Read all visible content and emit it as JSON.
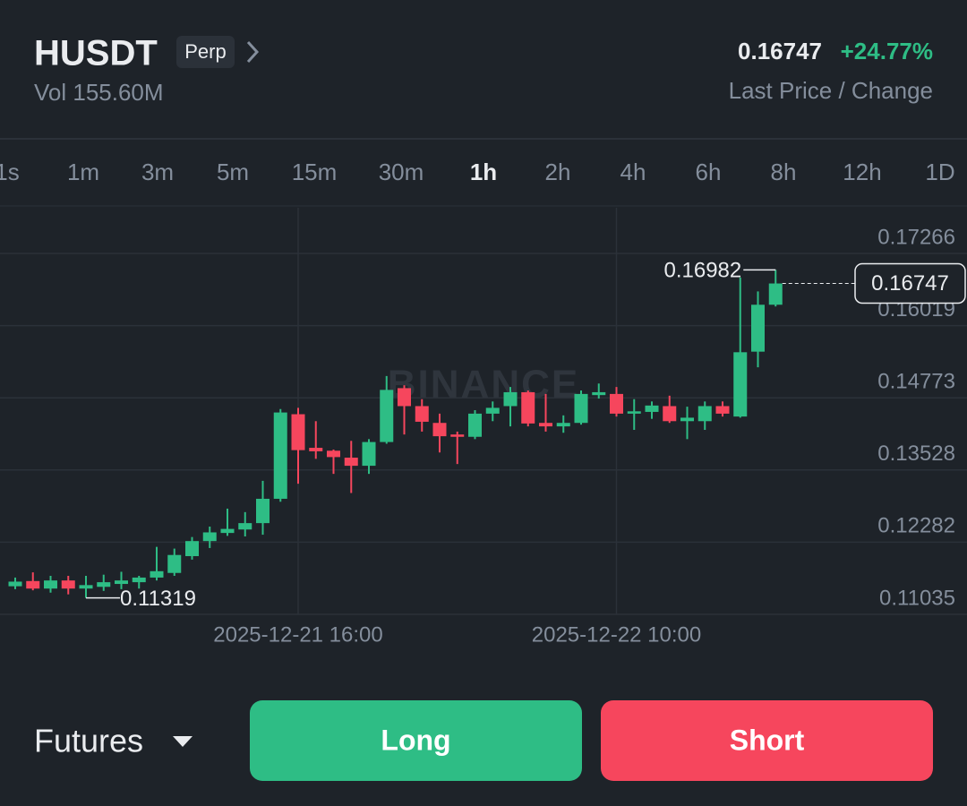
{
  "header": {
    "symbol": "HUSDT",
    "contract": "Perp",
    "volume": "Vol 155.60M",
    "last_price": "0.16747",
    "change": "+24.77%",
    "caption": "Last Price / Change"
  },
  "timeframes": [
    "1s",
    "1m",
    "3m",
    "5m",
    "15m",
    "30m",
    "1h",
    "2h",
    "4h",
    "6h",
    "8h",
    "12h",
    "1D"
  ],
  "selected_timeframe": "1h",
  "chart_data": {
    "type": "candlestick",
    "watermark": "BINANCE",
    "categories": [
      null,
      null,
      null,
      null,
      null,
      null,
      null,
      null,
      null,
      null,
      null,
      null,
      null,
      null,
      null,
      null,
      "2025-12-21 16:00",
      null,
      null,
      null,
      null,
      null,
      null,
      null,
      null,
      null,
      null,
      null,
      null,
      null,
      null,
      null,
      null,
      null,
      "2025-12-22 10:00",
      null,
      null,
      null,
      null,
      null,
      null,
      null,
      null,
      null
    ],
    "open": [
      0.1152,
      0.1161,
      0.1148,
      0.1162,
      0.1148,
      0.1151,
      0.1156,
      0.1159,
      0.1167,
      0.1175,
      0.1204,
      0.123,
      0.1244,
      0.125,
      0.1261,
      0.1303,
      0.1449,
      0.1391,
      0.1386,
      0.1374,
      0.136,
      0.1401,
      0.1494,
      0.1463,
      0.1434,
      0.1414,
      0.141,
      0.145,
      0.1463,
      0.1487,
      0.1434,
      0.1428,
      0.1434,
      0.1482,
      0.1484,
      0.145,
      0.1453,
      0.1463,
      0.1437,
      0.1437,
      0.1463,
      0.1445,
      0.1557,
      0.1638
    ],
    "high": [
      0.1167,
      0.1176,
      0.117,
      0.117,
      0.117,
      0.1172,
      0.1177,
      0.117,
      0.122,
      0.1217,
      0.1237,
      0.1255,
      0.1286,
      0.128,
      0.1334,
      0.1458,
      0.146,
      0.1437,
      0.1388,
      0.1403,
      0.1406,
      0.1515,
      0.1499,
      0.1475,
      0.145,
      0.1419,
      0.1456,
      0.1471,
      0.1496,
      0.149,
      0.1484,
      0.1447,
      0.149,
      0.1502,
      0.1496,
      0.1475,
      0.1471,
      0.1481,
      0.1462,
      0.1471,
      0.1471,
      0.1685,
      0.1661,
      0.16982
    ],
    "low": [
      0.1147,
      0.1145,
      0.1141,
      0.1138,
      0.11319,
      0.1144,
      0.1147,
      0.1148,
      0.1162,
      0.117,
      0.1198,
      0.1218,
      0.1239,
      0.1238,
      0.1241,
      0.1298,
      0.1329,
      0.1372,
      0.1346,
      0.1313,
      0.1346,
      0.1398,
      0.1414,
      0.1419,
      0.1383,
      0.1363,
      0.1406,
      0.1437,
      0.1428,
      0.1428,
      0.1419,
      0.1417,
      0.1431,
      0.1476,
      0.1445,
      0.1422,
      0.1441,
      0.1434,
      0.1406,
      0.1422,
      0.1445,
      0.1443,
      0.153,
      0.1635
    ],
    "close": [
      0.116,
      0.1148,
      0.1162,
      0.1148,
      0.1154,
      0.1159,
      0.1162,
      0.1167,
      0.1178,
      0.1206,
      0.123,
      0.1245,
      0.1251,
      0.1261,
      0.1303,
      0.1452,
      0.1387,
      0.1385,
      0.1375,
      0.136,
      0.1401,
      0.1491,
      0.1463,
      0.1436,
      0.1411,
      0.141,
      0.145,
      0.146,
      0.1487,
      0.1433,
      0.1428,
      0.1434,
      0.1484,
      0.1487,
      0.145,
      0.1454,
      0.1464,
      0.1437,
      0.1443,
      0.1463,
      0.145,
      0.1556,
      0.1638,
      0.16747
    ],
    "up_color": "#2ebd85",
    "down_color": "#f6465d",
    "ylim": [
      0.11035,
      0.18054
    ],
    "yticks": [
      0.11035,
      0.12282,
      0.13528,
      0.14773,
      0.16019,
      0.17266
    ],
    "grid": true
  },
  "footer": {
    "market": "Futures",
    "long": "Long",
    "short": "Short"
  }
}
